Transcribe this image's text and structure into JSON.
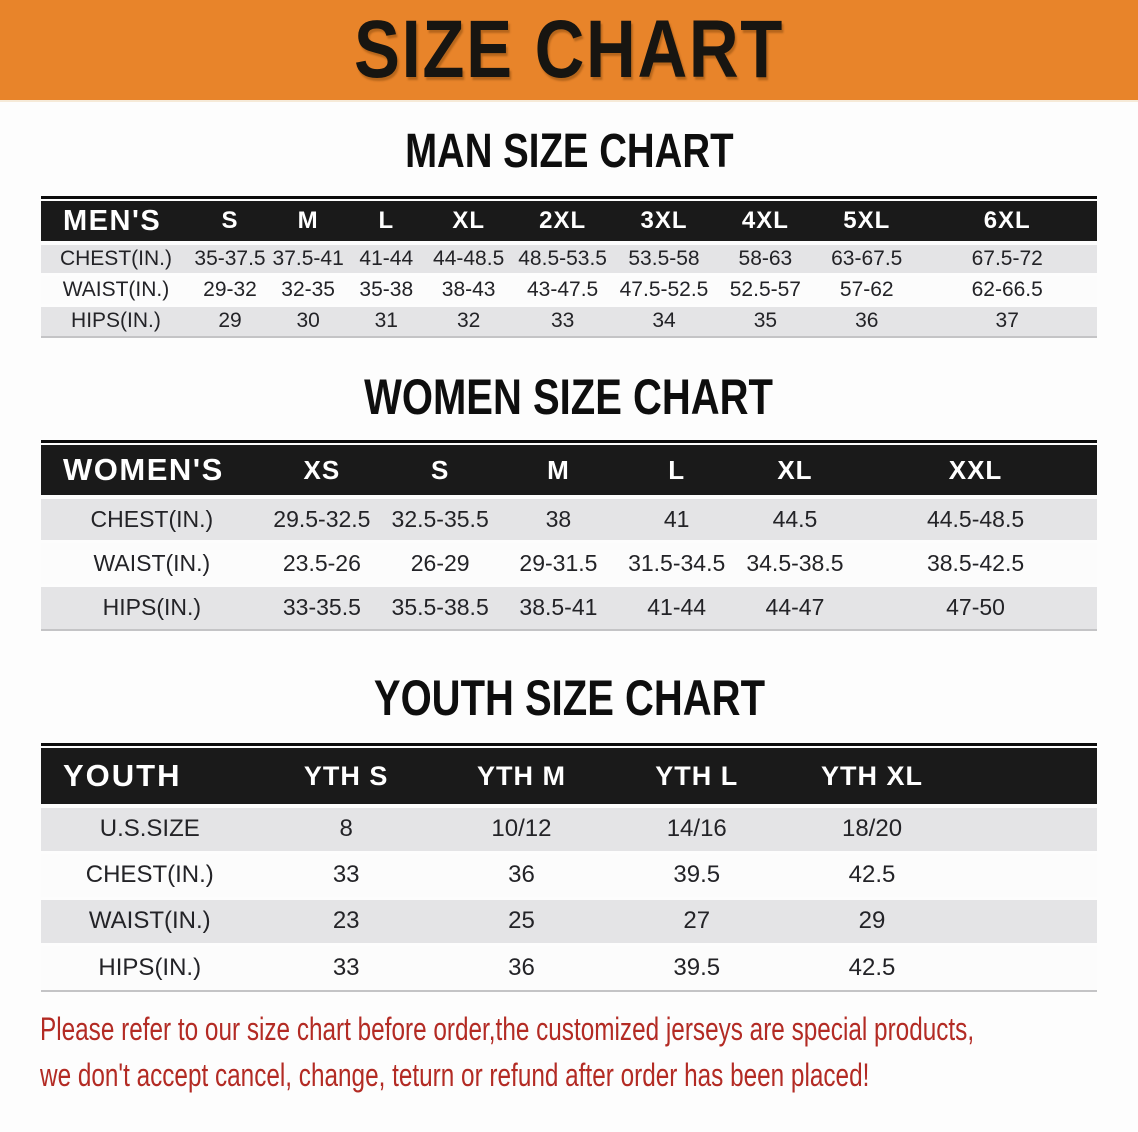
{
  "banner": {
    "title": "SIZE CHART"
  },
  "colors": {
    "banner_bg": "#E8842A",
    "table_header_bar": "#1A1A1A",
    "row_stripe_gray": "#E4E4E6",
    "row_stripe_white": "#FCFCFC",
    "disclaimer_red": "#B32B24"
  },
  "sections": [
    {
      "heading": "MAN SIZE CHART",
      "table": {
        "header": [
          "MEN'S",
          "S",
          "M",
          "L",
          "XL",
          "2XL",
          "3XL",
          "4XL",
          "5XL",
          "6XL"
        ],
        "rows": [
          {
            "label": "CHEST(IN.)",
            "values": [
              "35-37.5",
              "37.5-41",
              "41-44",
              "44-48.5",
              "48.5-53.5",
              "53.5-58",
              "58-63",
              "63-67.5",
              "67.5-72"
            ]
          },
          {
            "label": "WAIST(IN.)",
            "values": [
              "29-32",
              "32-35",
              "35-38",
              "38-43",
              "43-47.5",
              "47.5-52.5",
              "52.5-57",
              "57-62",
              "62-66.5"
            ]
          },
          {
            "label": "HIPS(IN.)",
            "values": [
              "29",
              "30",
              "31",
              "32",
              "33",
              "34",
              "35",
              "36",
              "37"
            ]
          }
        ]
      }
    },
    {
      "heading": "WOMEN SIZE CHART",
      "table": {
        "header": [
          "WOMEN'S",
          "XS",
          "S",
          "M",
          "L",
          "XL",
          "XXL"
        ],
        "rows": [
          {
            "label": "CHEST(IN.)",
            "values": [
              "29.5-32.5",
              "32.5-35.5",
              "38",
              "41",
              "44.5",
              "44.5-48.5"
            ]
          },
          {
            "label": "WAIST(IN.)",
            "values": [
              "23.5-26",
              "26-29",
              "29-31.5",
              "31.5-34.5",
              "34.5-38.5",
              "38.5-42.5"
            ]
          },
          {
            "label": "HIPS(IN.)",
            "values": [
              "33-35.5",
              "35.5-38.5",
              "38.5-41",
              "41-44",
              "44-47",
              "47-50"
            ]
          }
        ]
      }
    },
    {
      "heading": "YOUTH SIZE CHART",
      "table": {
        "header": [
          "YOUTH",
          "YTH S",
          "YTH M",
          "YTH L",
          "YTH XL"
        ],
        "rows": [
          {
            "label": "U.S.SIZE",
            "values": [
              "8",
              "10/12",
              "14/16",
              "18/20"
            ]
          },
          {
            "label": "CHEST(IN.)",
            "values": [
              "33",
              "36",
              "39.5",
              "42.5"
            ]
          },
          {
            "label": "WAIST(IN.)",
            "values": [
              "23",
              "25",
              "27",
              "29"
            ]
          },
          {
            "label": "HIPS(IN.)",
            "values": [
              "33",
              "36",
              "39.5",
              "42.5"
            ]
          }
        ]
      }
    }
  ],
  "disclaimer": {
    "lines": [
      "Please refer to our size chart before order,the customized jerseys are special products,",
      "we don't accept cancel, change, teturn or refund after order has been placed!"
    ]
  }
}
